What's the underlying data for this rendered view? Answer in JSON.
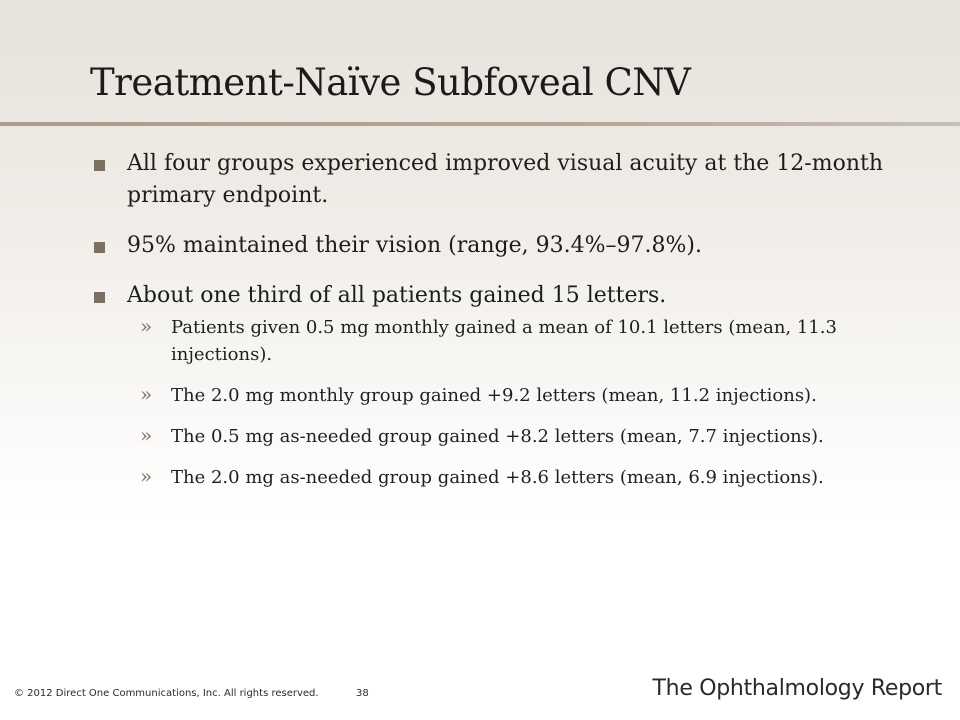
{
  "slide": {
    "title": "Treatment-Naïve Subfoveal CNV"
  },
  "bullets": [
    {
      "text": "All four groups experienced improved visual acuity at the 12-month primary endpoint.",
      "subs": []
    },
    {
      "text": "95% maintained their vision (range, 93.4%–97.8%).",
      "subs": []
    },
    {
      "text": "About one third of all patients gained 15 letters.",
      "subs": [
        "Patients given 0.5 mg monthly gained a mean of 10.1 letters (mean, 11.3 injections).",
        "The 2.0 mg monthly group gained +9.2 letters (mean, 11.2 injections).",
        "The 0.5 mg as-needed group gained +8.2 letters (mean, 7.7 injections).",
        "The 2.0 mg as-needed group gained +8.6 letters (mean, 6.9 injections)."
      ]
    }
  ],
  "markers": {
    "sub_bullet": "»"
  },
  "footer": {
    "copyright": "© 2012 Direct One Communications, Inc. All rights reserved.",
    "page_number": "38",
    "brand": "The Ophthalmology Report"
  }
}
